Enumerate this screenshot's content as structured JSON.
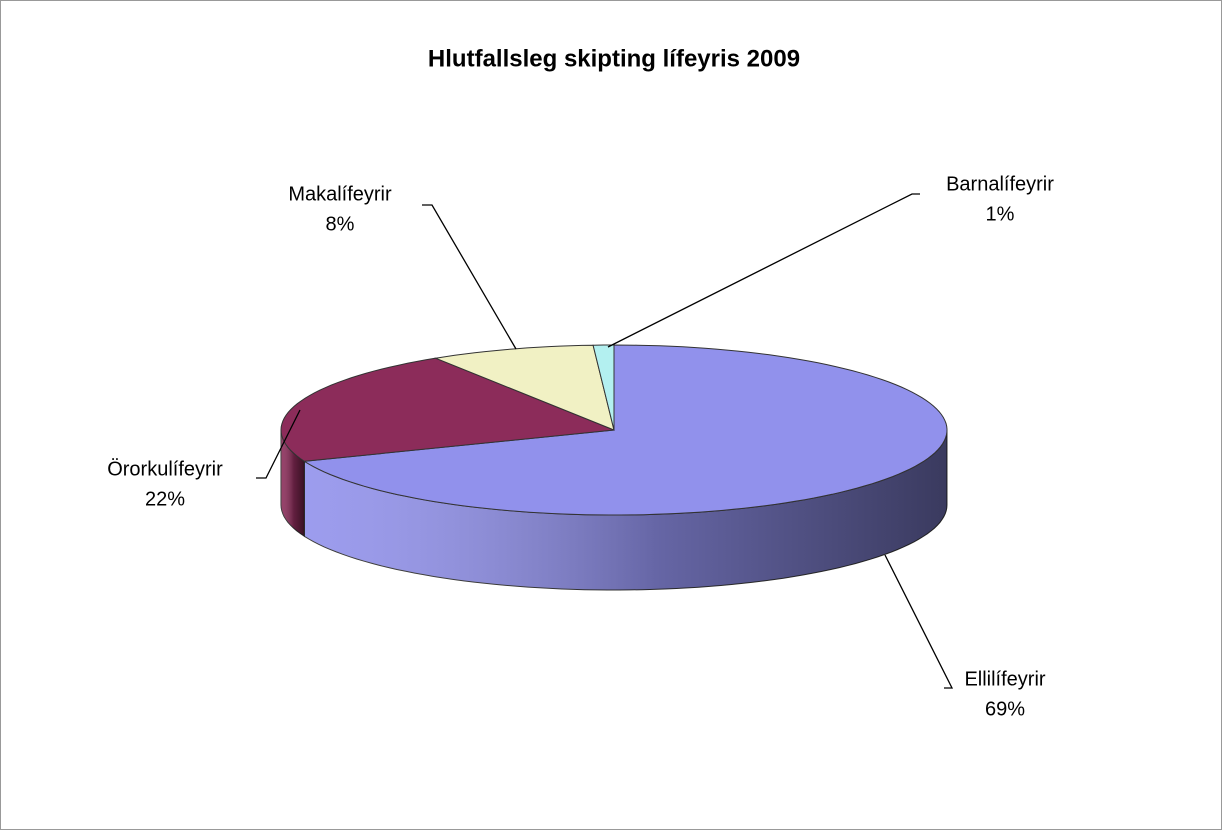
{
  "chart_data": {
    "type": "pie3d",
    "title": "Hlutfallsleg skipting lífeyris 2009",
    "categories": [
      "Ellilífeyrir",
      "Örorkulífeyrir",
      "Makalífeyrir",
      "Barnalífeyrir"
    ],
    "values": [
      69,
      22,
      8,
      1
    ],
    "value_labels": [
      "69%",
      "22%",
      "8%",
      "1%"
    ],
    "colors": [
      "#9191ec",
      "#8c2c5a",
      "#f1f1c4",
      "#b3f0f0"
    ]
  }
}
